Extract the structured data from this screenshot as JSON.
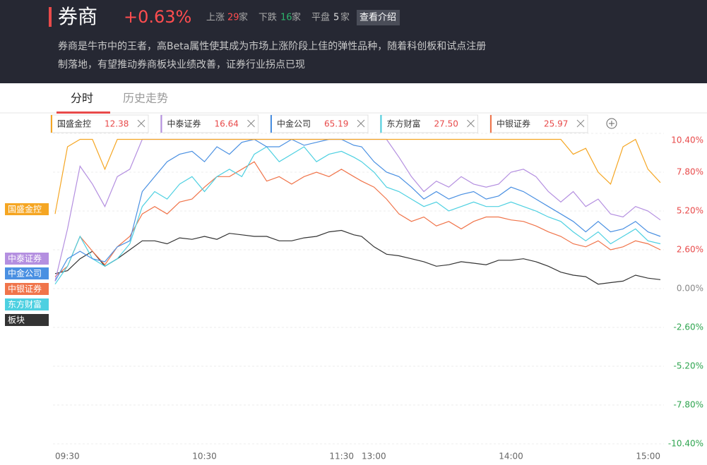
{
  "header": {
    "title": "券商",
    "change": "+0.63%",
    "up_label": "上涨",
    "up_count": 29,
    "unit": "家",
    "down_label": "下跌",
    "down_count": 16,
    "flat_label": "平盘",
    "flat_count": 5,
    "button": "查看介绍",
    "description": [
      "券商是牛市中的王者，高Beta属性使其成为市场上涨阶段上佳的弹性品种，随着科创板和试点注册",
      "制落地，有望推动券商板块业绩改善，证券行业拐点已现"
    ]
  },
  "tabs": [
    "分时",
    "历史走势"
  ],
  "chart_data": {
    "type": "line",
    "categories": [
      "09:30",
      null,
      null,
      null,
      null,
      null,
      null,
      null,
      null,
      null,
      null,
      null,
      "10:30",
      null,
      null,
      null,
      null,
      null,
      null,
      null,
      null,
      null,
      null,
      null,
      "11:30",
      "13:00",
      null,
      null,
      null,
      null,
      null,
      null,
      null,
      null,
      null,
      null,
      null,
      "14:00",
      null,
      null,
      null,
      null,
      null,
      null,
      null,
      null,
      null,
      null,
      null,
      "15:00"
    ],
    "ylim": [
      -10.4,
      10.4
    ],
    "yticks": [
      {
        "value": 10.4,
        "label": "10.40%"
      },
      {
        "value": 7.8,
        "label": "7.80%"
      },
      {
        "value": 5.2,
        "label": "5.20%"
      },
      {
        "value": 2.6,
        "label": "2.60%"
      },
      {
        "value": 0,
        "label": "0.00%"
      },
      {
        "value": -2.6,
        "label": "-2.60%"
      },
      {
        "value": -5.2,
        "label": "-5.20%"
      },
      {
        "value": -7.8,
        "label": "-7.80%"
      },
      {
        "value": -10.4,
        "label": "-10.40%"
      }
    ],
    "grid": true,
    "series": [
      {
        "name": "国盛金控",
        "price": "12.38",
        "color": "#f5a623",
        "values": [
          5.0,
          9.5,
          10,
          10,
          8.0,
          10,
          10,
          10,
          10,
          10,
          10,
          10,
          10,
          10,
          10,
          10,
          10,
          10,
          10,
          10,
          10,
          10,
          10,
          10,
          10,
          10,
          10,
          10,
          10,
          10,
          10,
          10,
          10,
          10,
          10,
          10,
          10,
          10,
          10,
          10,
          10,
          10,
          9.0,
          9.4,
          7.8,
          7.0,
          9.5,
          10,
          8.0,
          7.1
        ]
      },
      {
        "name": "中泰证券",
        "price": "16.64",
        "color": "#b48fe0",
        "values": [
          0.5,
          4.0,
          8.2,
          7.0,
          5.5,
          7.5,
          8.0,
          10,
          10,
          10,
          10,
          10,
          10,
          10,
          10,
          10,
          10,
          10,
          10,
          10,
          10,
          10,
          10,
          10,
          10,
          10,
          10,
          10,
          8.8,
          7.5,
          6.5,
          7.2,
          6.8,
          7.5,
          7.0,
          6.8,
          7.0,
          7.8,
          8.0,
          7.5,
          6.5,
          5.8,
          6.5,
          5.5,
          6.0,
          5.0,
          4.8,
          5.5,
          5.2,
          4.6
        ]
      },
      {
        "name": "中金公司",
        "price": "65.19",
        "color": "#4a90e2",
        "values": [
          0.5,
          2.0,
          2.5,
          2.0,
          1.8,
          2.8,
          3.2,
          6.5,
          7.5,
          8.5,
          9.0,
          9.2,
          8.5,
          9.5,
          9.0,
          9.8,
          10,
          9.5,
          9.5,
          10,
          9.6,
          9.8,
          10,
          10,
          9.6,
          9.5,
          8.5,
          7.8,
          7.5,
          6.8,
          6.0,
          6.5,
          6.0,
          6.3,
          6.5,
          6.0,
          6.2,
          6.8,
          6.5,
          6.0,
          5.5,
          5.0,
          4.5,
          3.8,
          4.5,
          3.8,
          4.0,
          4.5,
          3.8,
          3.5
        ]
      },
      {
        "name": "东方财富",
        "price": "27.50",
        "color": "#4dd0e1",
        "values": [
          0.3,
          1.5,
          3.5,
          2.0,
          1.5,
          2.0,
          3.0,
          5.5,
          6.5,
          6.0,
          7.0,
          7.5,
          6.5,
          7.5,
          8.0,
          7.5,
          9.0,
          9.5,
          8.5,
          9.0,
          9.5,
          8.5,
          9.0,
          9.2,
          8.8,
          8.5,
          7.8,
          6.8,
          6.5,
          6.0,
          5.5,
          5.8,
          5.2,
          5.5,
          5.8,
          5.5,
          5.5,
          5.8,
          5.5,
          5.2,
          4.8,
          4.5,
          3.8,
          3.2,
          3.8,
          3.0,
          3.5,
          4.0,
          3.2,
          3.0
        ]
      },
      {
        "name": "中银证券",
        "price": "25.97",
        "color": "#f0744a",
        "values": [
          0.8,
          1.5,
          3.5,
          2.5,
          1.6,
          2.8,
          3.5,
          5.0,
          5.5,
          5.0,
          5.8,
          6.0,
          6.8,
          7.5,
          7.5,
          8.0,
          8.5,
          7.2,
          7.5,
          7.0,
          7.5,
          7.8,
          7.5,
          8.0,
          7.5,
          7.2,
          6.8,
          6.0,
          5.0,
          4.5,
          4.8,
          4.2,
          4.5,
          4.0,
          4.5,
          4.8,
          4.8,
          4.6,
          4.5,
          4.2,
          3.8,
          3.5,
          3.0,
          2.8,
          3.2,
          2.6,
          2.8,
          3.2,
          3.0,
          2.6
        ]
      },
      {
        "name": "板块",
        "color": "#333333",
        "values": [
          1.0,
          1.2,
          2.0,
          2.5,
          1.5,
          2.0,
          2.6,
          3.2,
          3.2,
          3.0,
          3.4,
          3.3,
          3.5,
          3.3,
          3.7,
          3.6,
          3.5,
          3.5,
          3.2,
          3.2,
          3.4,
          3.5,
          3.8,
          3.9,
          3.6,
          3.5,
          2.8,
          2.3,
          2.2,
          2.0,
          1.8,
          1.5,
          1.6,
          1.8,
          1.7,
          1.6,
          1.9,
          1.9,
          2.0,
          1.8,
          1.5,
          1.1,
          0.9,
          0.8,
          0.3,
          0.4,
          0.5,
          0.9,
          0.7,
          0.6
        ]
      }
    ]
  }
}
